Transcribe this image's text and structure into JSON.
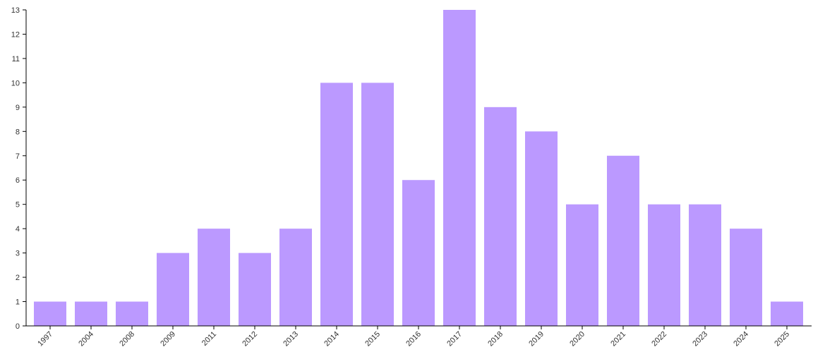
{
  "chart_data": {
    "type": "bar",
    "categories": [
      "1997",
      "2004",
      "2008",
      "2009",
      "2011",
      "2012",
      "2013",
      "2014",
      "2015",
      "2016",
      "2017",
      "2018",
      "2019",
      "2020",
      "2021",
      "2022",
      "2023",
      "2024",
      "2025"
    ],
    "values": [
      1,
      1,
      1,
      3,
      4,
      3,
      4,
      10,
      10,
      6,
      13,
      9,
      8,
      5,
      7,
      5,
      5,
      4,
      1
    ],
    "ylim": [
      0,
      13
    ],
    "y_ticks": [
      0,
      1,
      2,
      3,
      4,
      5,
      6,
      7,
      8,
      9,
      10,
      11,
      12,
      13
    ],
    "grid": false,
    "legend": "none",
    "bar_color": "#bb99ff"
  }
}
